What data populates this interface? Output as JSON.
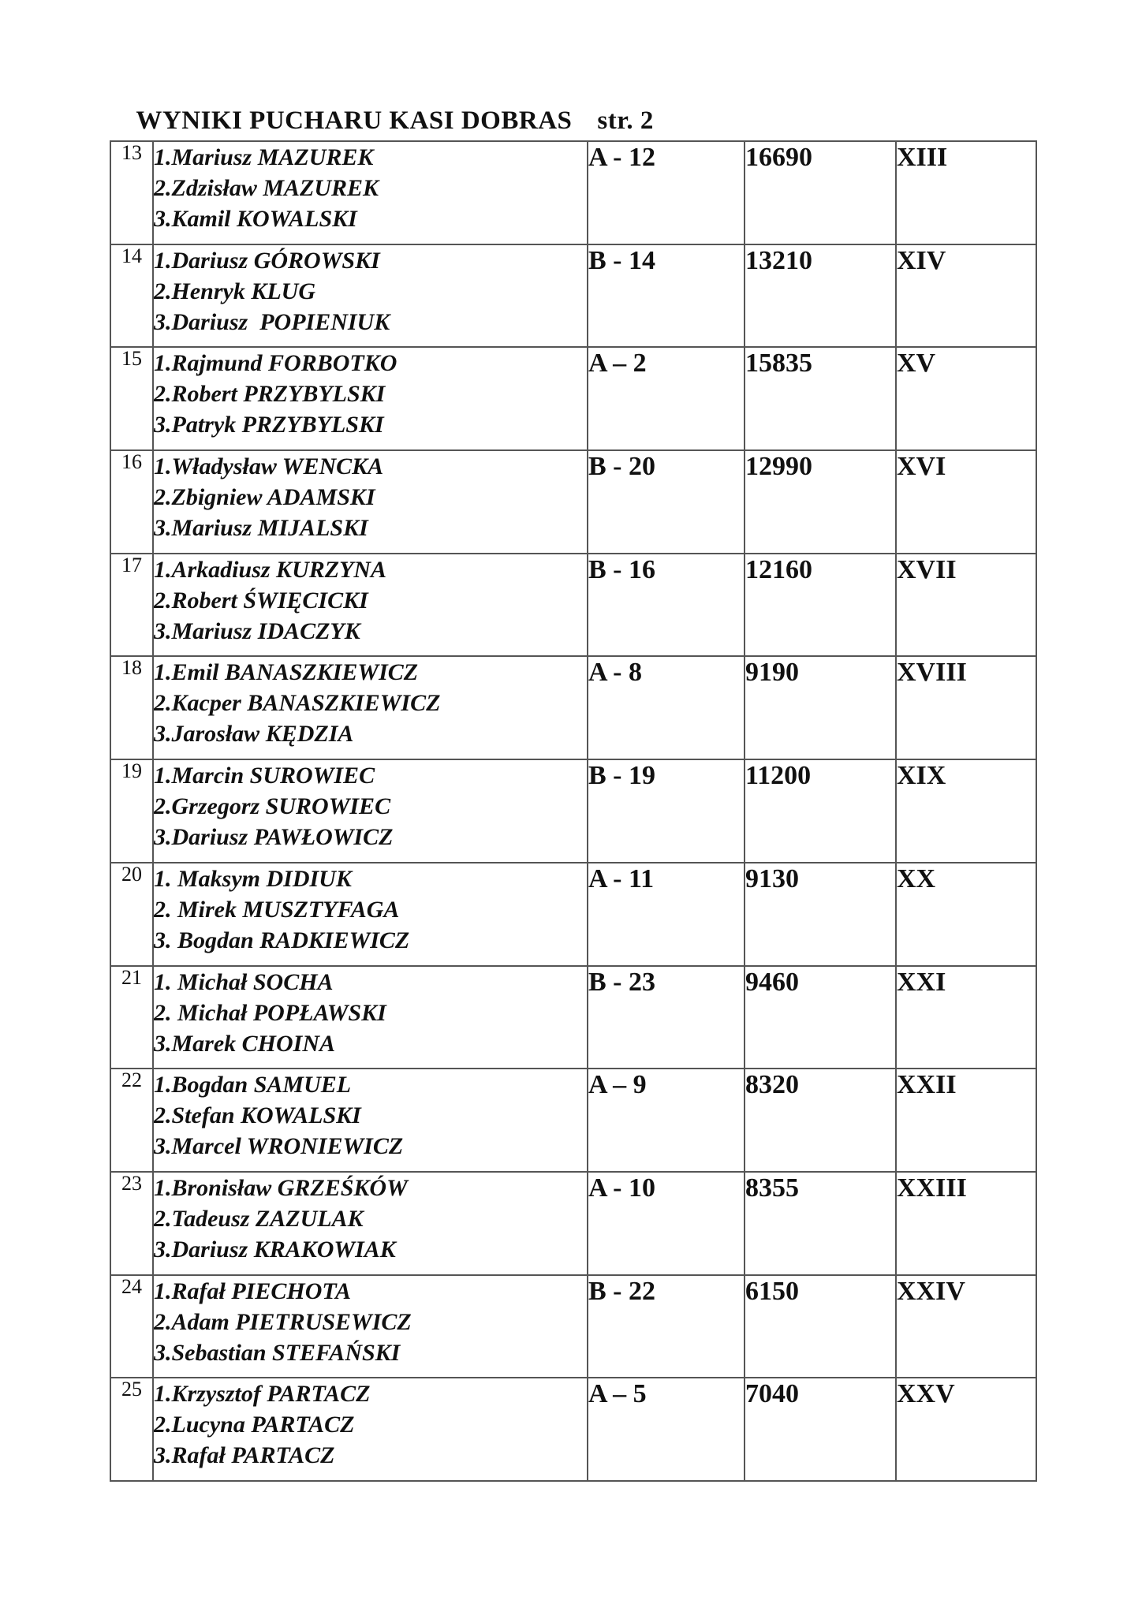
{
  "page": {
    "title": "WYNIKI PUCHARU KASI DOBRAS",
    "page_label": "str. 2"
  },
  "colors": {
    "text": "#111111",
    "border": "#555555",
    "background": "#ffffff"
  },
  "table": {
    "columns": [
      "rank",
      "team_members",
      "group_code",
      "score",
      "place_roman"
    ],
    "rows": [
      {
        "rank": "13",
        "names": [
          "1.Mariusz MAZUREK",
          "2.Zdzisław MAZUREK",
          "3.Kamil KOWALSKI"
        ],
        "code": "A - 12",
        "score": "16690",
        "roman": "XIII"
      },
      {
        "rank": "14",
        "names": [
          "1.Dariusz GÓROWSKI",
          "2.Henryk KLUG",
          "3.Dariusz  POPIENIUK"
        ],
        "code": "B - 14",
        "score": "13210",
        "roman": "XIV"
      },
      {
        "rank": "15",
        "names": [
          "1.Rajmund FORBOTKO",
          "2.Robert PRZYBYLSKI",
          "3.Patryk PRZYBYLSKI"
        ],
        "code": "A – 2",
        "score": "15835",
        "roman": "XV"
      },
      {
        "rank": "16",
        "names": [
          "1.Władysław WENCKA",
          "2.Zbigniew ADAMSKI",
          "3.Mariusz MIJALSKI"
        ],
        "code": "B - 20",
        "score": "12990",
        "roman": "XVI"
      },
      {
        "rank": "17",
        "names": [
          "1.Arkadiusz KURZYNA",
          "2.Robert ŚWIĘCICKI",
          "3.Mariusz IDACZYK"
        ],
        "code": "B - 16",
        "score": "12160",
        "roman": "XVII"
      },
      {
        "rank": "18",
        "names": [
          "1.Emil BANASZKIEWICZ",
          "2.Kacper BANASZKIEWICZ",
          "3.Jarosław KĘDZIA"
        ],
        "code": "A - 8",
        "score": "9190",
        "roman": "XVIII"
      },
      {
        "rank": "19",
        "names": [
          "1.Marcin SUROWIEC",
          "2.Grzegorz SUROWIEC",
          "3.Dariusz PAWŁOWICZ"
        ],
        "code": "B - 19",
        "score": "11200",
        "roman": "XIX"
      },
      {
        "rank": "20",
        "names": [
          "1. Maksym DIDIUK",
          "2. Mirek MUSZTYFAGA",
          "3. Bogdan RADKIEWICZ"
        ],
        "code": "A - 11",
        "score": "9130",
        "roman": "XX"
      },
      {
        "rank": "21",
        "names": [
          "1. Michał SOCHA",
          "2. Michał POPŁAWSKI",
          "3.Marek CHOINA"
        ],
        "code": "B - 23",
        "score": "9460",
        "roman": "XXI"
      },
      {
        "rank": "22",
        "names": [
          "1.Bogdan SAMUEL",
          "2.Stefan KOWALSKI",
          "3.Marcel WRONIEWICZ"
        ],
        "code": "A – 9",
        "score": "8320",
        "roman": "XXII"
      },
      {
        "rank": "23",
        "names": [
          "1.Bronisław GRZEŚKÓW",
          "2.Tadeusz ZAZULAK",
          "3.Dariusz KRAKOWIAK"
        ],
        "code": "A - 10",
        "score": "8355",
        "roman": "XXIII"
      },
      {
        "rank": "24",
        "names": [
          "1.Rafał PIECHOTA",
          "2.Adam PIETRUSEWICZ",
          "3.Sebastian STEFAŃSKI"
        ],
        "code": "B - 22",
        "score": "6150",
        "roman": "XXIV"
      },
      {
        "rank": "25",
        "names": [
          "1.Krzysztof PARTACZ",
          "2.Lucyna PARTACZ",
          "3.Rafał PARTACZ"
        ],
        "code": "A – 5",
        "score": "7040",
        "roman": "XXV"
      }
    ]
  }
}
